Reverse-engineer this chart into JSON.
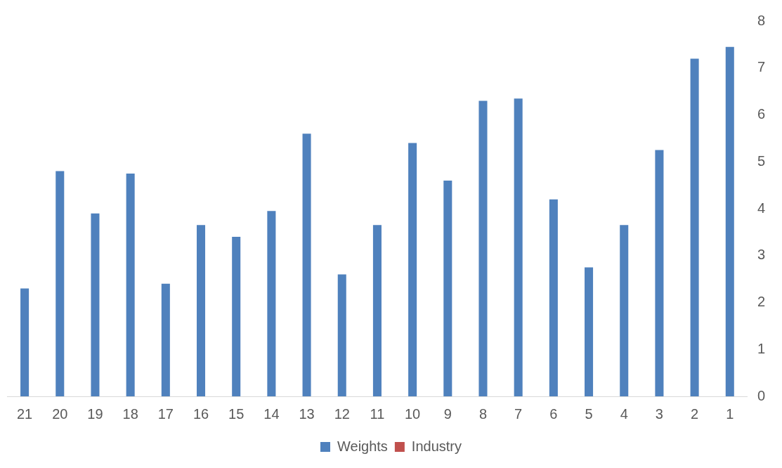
{
  "chart_data": {
    "type": "bar",
    "categories": [
      "21",
      "20",
      "19",
      "18",
      "17",
      "16",
      "15",
      "14",
      "13",
      "12",
      "11",
      "10",
      "9",
      "8",
      "7",
      "6",
      "5",
      "4",
      "3",
      "2",
      "1"
    ],
    "series": [
      {
        "name": "Weights",
        "color": "#4f81bd",
        "values": [
          2.3,
          4.8,
          3.9,
          4.75,
          2.4,
          3.65,
          3.4,
          3.95,
          5.6,
          2.6,
          3.65,
          5.4,
          4.6,
          6.3,
          6.35,
          4.2,
          2.75,
          3.65,
          5.25,
          7.2,
          7.45
        ]
      },
      {
        "name": "Industry",
        "color": "#c0504d",
        "values": [
          null,
          null,
          null,
          null,
          null,
          null,
          null,
          null,
          null,
          null,
          null,
          null,
          null,
          null,
          null,
          null,
          null,
          null,
          null,
          null,
          null
        ]
      }
    ],
    "ylim": [
      0,
      8
    ],
    "yticks": [
      0,
      1,
      2,
      3,
      4,
      5,
      6,
      7,
      8
    ],
    "grid": false,
    "legend": "bottom"
  }
}
